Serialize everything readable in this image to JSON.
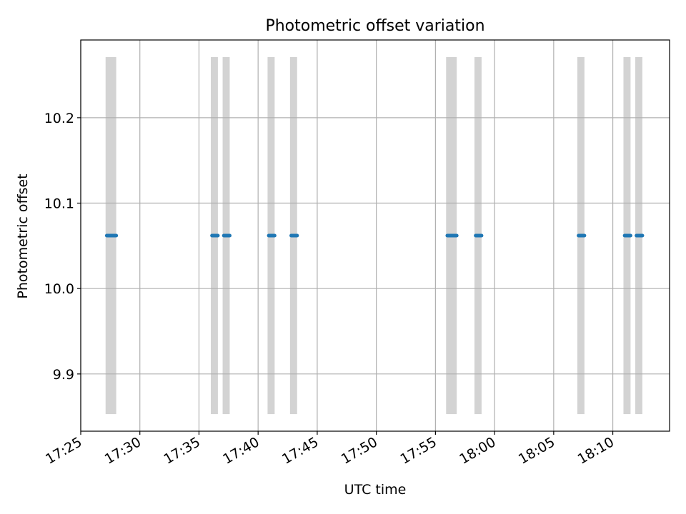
{
  "chart_data": {
    "type": "scatter",
    "title": "Photometric offset variation",
    "xlabel": "UTC time",
    "ylabel": "Photometric offset",
    "x_ticks": [
      "17:25",
      "17:30",
      "17:35",
      "17:40",
      "17:45",
      "17:50",
      "17:55",
      "18:00",
      "18:05",
      "18:10"
    ],
    "y_ticks": [
      "9.9",
      "10.0",
      "10.1",
      "10.2"
    ],
    "xlim": [
      "17:25",
      "18:14.8"
    ],
    "ylim": [
      9.833,
      10.291
    ],
    "grid": true,
    "legend": "none",
    "exposure_bands": {
      "color": "#d3d3d3",
      "y_range": [
        9.853,
        10.271
      ],
      "spans": [
        [
          "17:27.1",
          "17:28.0"
        ],
        [
          "17:36.0",
          "17:36.6"
        ],
        [
          "17:37.0",
          "17:37.6"
        ],
        [
          "17:40.8",
          "17:41.4"
        ],
        [
          "17:42.7",
          "17:43.3"
        ],
        [
          "17:55.9",
          "17:56.8"
        ],
        [
          "17:58.3",
          "17:58.9"
        ],
        [
          "18:07.0",
          "18:07.6"
        ],
        [
          "18:10.9",
          "18:11.5"
        ],
        [
          "18:11.9",
          "18:12.5"
        ]
      ]
    },
    "series": [
      {
        "color": "#1f77b4",
        "y": 10.062,
        "segments": [
          [
            "17:27.2",
            "17:28.0"
          ],
          [
            "17:36.1",
            "17:36.6"
          ],
          [
            "17:37.1",
            "17:37.6"
          ],
          [
            "17:40.9",
            "17:41.4"
          ],
          [
            "17:42.8",
            "17:43.3"
          ],
          [
            "17:56.0",
            "17:56.8"
          ],
          [
            "17:58.4",
            "17:58.9"
          ],
          [
            "18:07.1",
            "18:07.6"
          ],
          [
            "18:11.0",
            "18:11.5"
          ],
          [
            "18:12.0",
            "18:12.5"
          ]
        ]
      }
    ]
  }
}
